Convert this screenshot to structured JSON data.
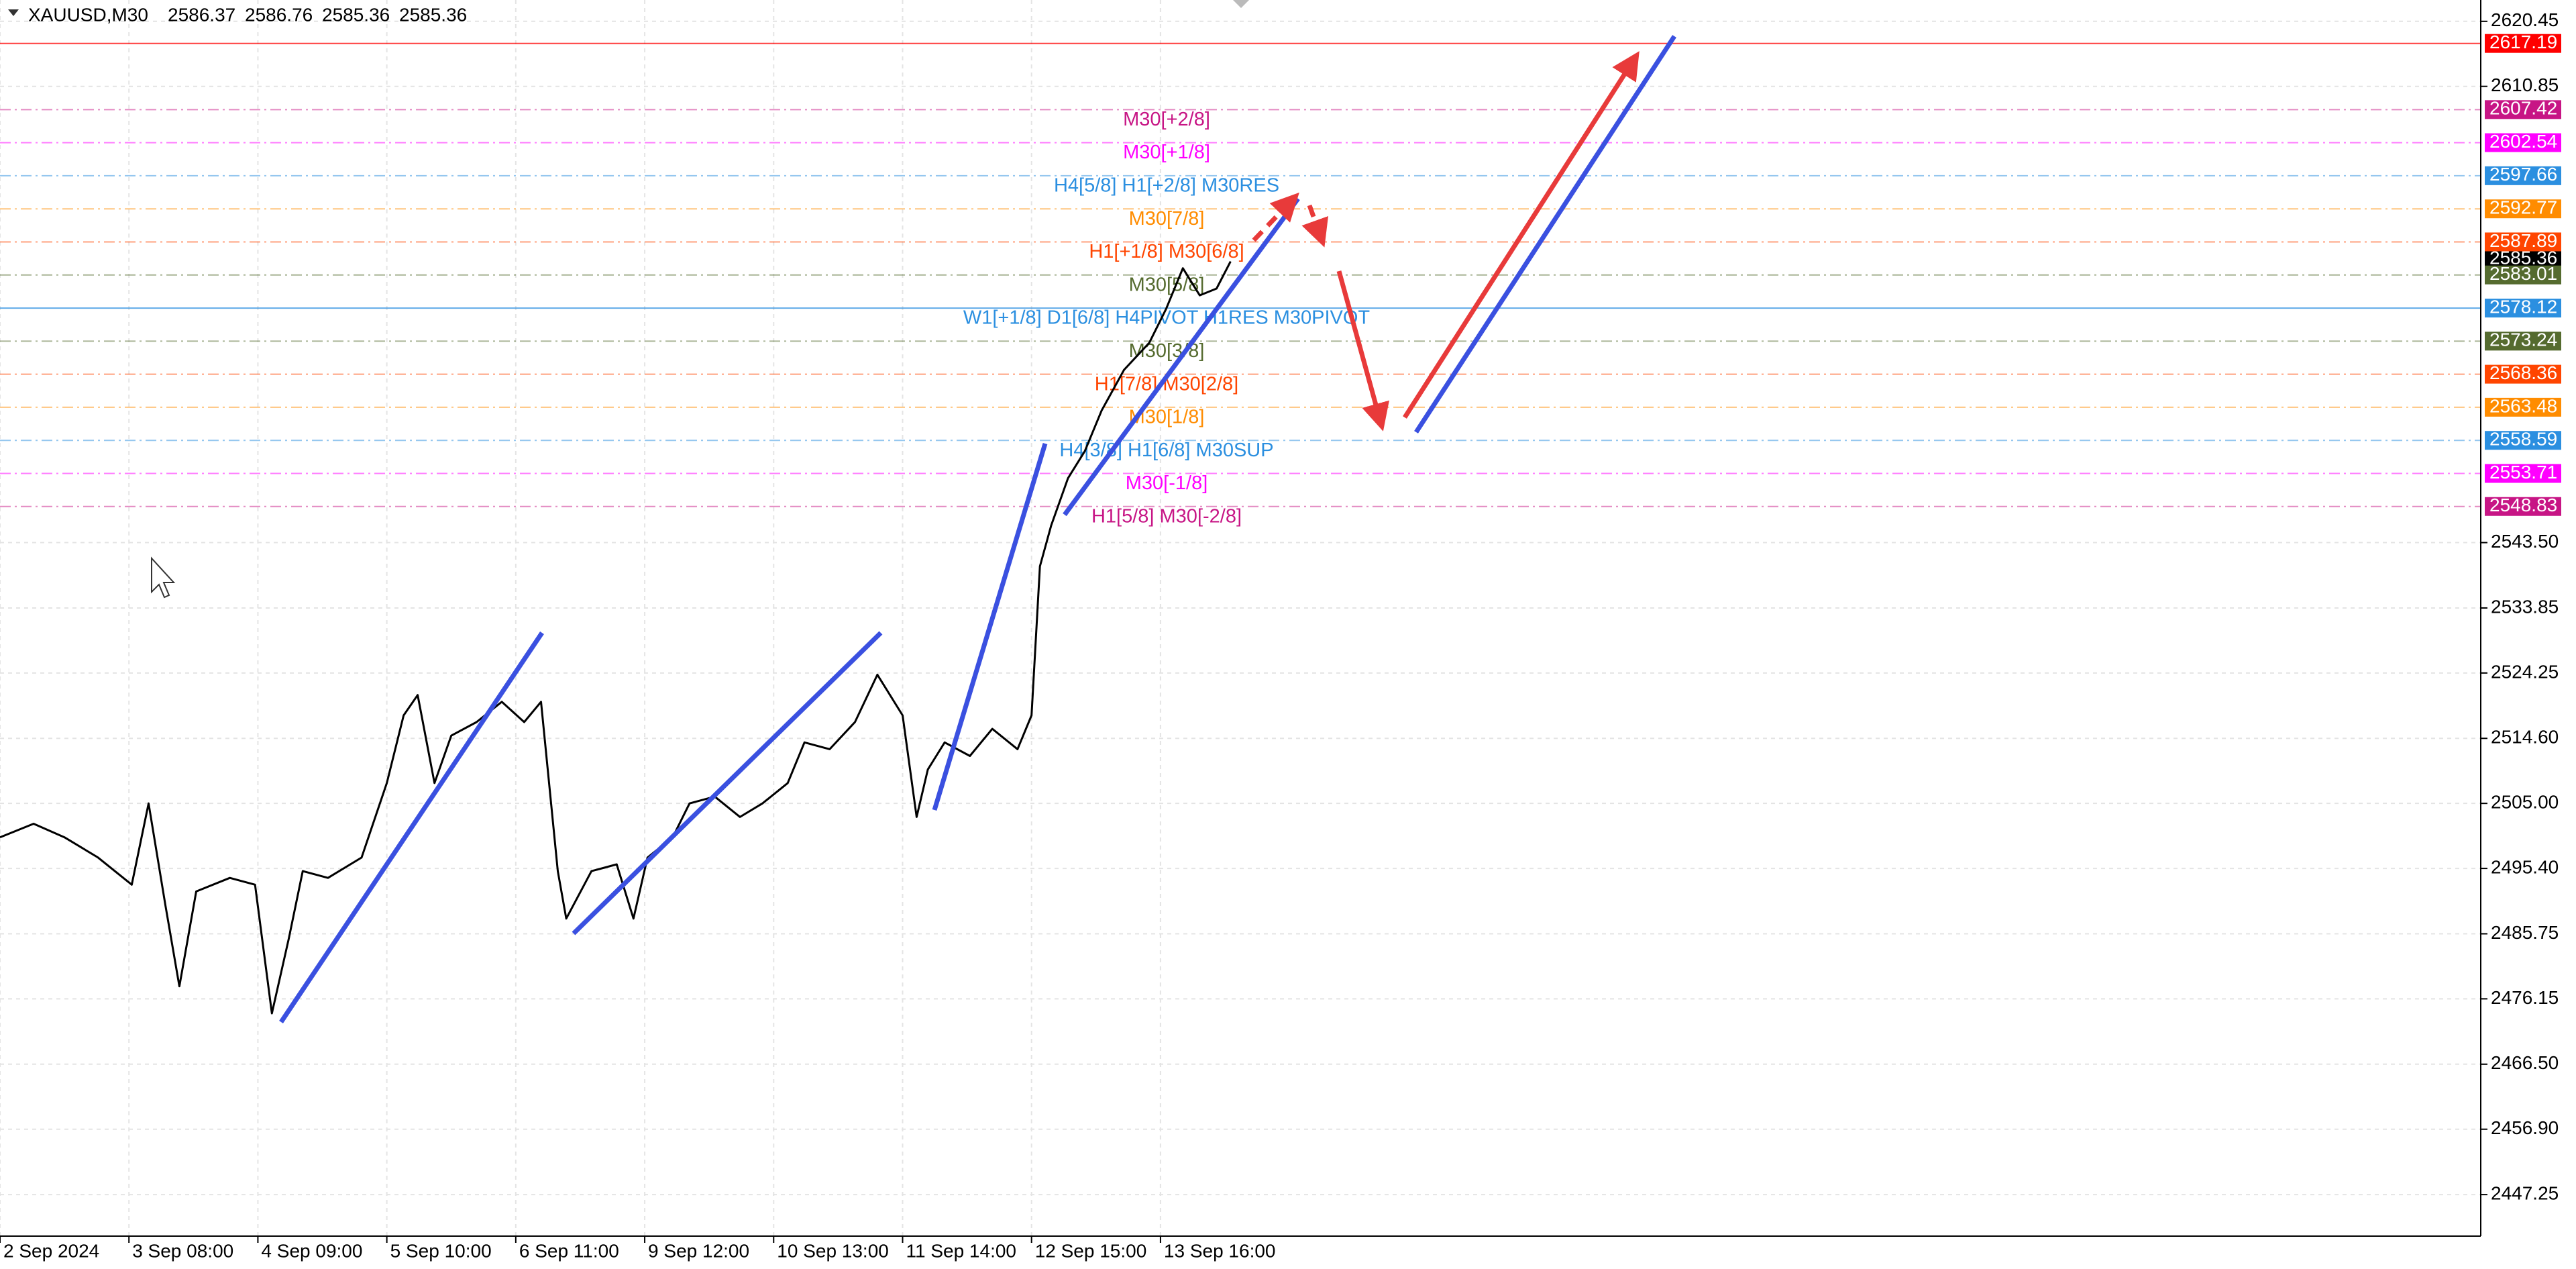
{
  "header": {
    "symbol": "XAUUSD,M30",
    "ohlc": [
      2586.37,
      2586.76,
      2585.36,
      2585.36
    ]
  },
  "chart_data": {
    "type": "line",
    "color": "#000000",
    "x": [
      0,
      12,
      23,
      35,
      47,
      53,
      59,
      64,
      70,
      82,
      91,
      97,
      103,
      108,
      117,
      129,
      138,
      144,
      149,
      155,
      161,
      170,
      179,
      187,
      193,
      199,
      202,
      211,
      220,
      226,
      231,
      240,
      246,
      255,
      264,
      272,
      281,
      287,
      296,
      305,
      313,
      322,
      327,
      331,
      337,
      346,
      354,
      363,
      368,
      371,
      375,
      381,
      387,
      393,
      401,
      410,
      416,
      422,
      428,
      434,
      439
    ],
    "values": [
      2500,
      2502,
      2500,
      2497,
      2493,
      2505,
      2490,
      2478,
      2492,
      2494,
      2493,
      2474,
      2485,
      2495,
      2494,
      2497,
      2508,
      2518,
      2521,
      2508,
      2515,
      2517,
      2520,
      2517,
      2520,
      2495,
      2488,
      2495,
      2496,
      2488,
      2497,
      2500,
      2505,
      2506,
      2503,
      2505,
      2508,
      2514,
      2513,
      2517,
      2524,
      2518,
      2503,
      2510,
      2514,
      2512,
      2516,
      2513,
      2518,
      2540,
      2546,
      2553,
      2557,
      2563,
      2569,
      2573,
      2578,
      2584,
      2580,
      2581,
      2585
    ],
    "xlim": [
      0,
      885
    ],
    "xticks": [
      {
        "value": 0,
        "label": "2 Sep 2024"
      },
      {
        "value": 46,
        "label": "3 Sep 08:00"
      },
      {
        "value": 92,
        "label": "4 Sep 09:00"
      },
      {
        "value": 138,
        "label": "5 Sep 10:00"
      },
      {
        "value": 184,
        "label": "6 Sep 11:00"
      },
      {
        "value": 230,
        "label": "9 Sep 12:00"
      },
      {
        "value": 276,
        "label": "10 Sep 13:00"
      },
      {
        "value": 322,
        "label": "11 Sep 14:00"
      },
      {
        "value": 368,
        "label": "12 Sep 15:00"
      },
      {
        "value": 414,
        "label": "13 Sep 16:00"
      }
    ],
    "ylim": [
      2441.12,
      2623.6
    ],
    "yticks": [
      2620.45,
      2610.85,
      {
        "value": 2543.5,
        "label": "2543.50"
      },
      2533.85,
      2524.25,
      {
        "value": 2514.6,
        "label": "2514.60"
      },
      {
        "value": 2505,
        "label": "2505.00"
      },
      {
        "value": 2495.4,
        "label": "2495.40"
      },
      2485.75,
      2476.15,
      {
        "value": 2466.5,
        "label": "2466.50"
      },
      {
        "value": 2456.9,
        "label": "2456.90"
      },
      2447.25
    ],
    "grid": true,
    "bid": 2585.36,
    "levels": [
      {
        "value": 2617.19,
        "color": "#ff0000",
        "style": "solid"
      },
      {
        "value": 2607.42,
        "label": "M30[+2/8]",
        "color": "#c71585",
        "style": "dashdot"
      },
      {
        "value": 2602.54,
        "label": "M30[+1/8]",
        "color": "#ff00ff",
        "style": "dashdot"
      },
      {
        "value": 2597.66,
        "label": "H4[5/8] H1[+2/8] M30RES",
        "color": "#2b8fe0",
        "style": "dashdot"
      },
      {
        "value": 2592.77,
        "label": "M30[7/8]",
        "color": "#ff8c00",
        "style": "dashdot"
      },
      {
        "value": 2587.89,
        "label": "H1[+1/8] M30[6/8]",
        "color": "#ff4500",
        "style": "dashdot"
      },
      {
        "value": 2583.01,
        "label": "M30[5/8]",
        "color": "#556b2f",
        "style": "dashdot"
      },
      {
        "value": 2578.12,
        "label": "W1[+1/8] D1[6/8] H4PIVOT H1RES M30PIVOT",
        "color": "#2b8fe0",
        "style": "solid"
      },
      {
        "value": 2573.24,
        "label": "M30[3/8]",
        "color": "#556b2f",
        "style": "dashdot"
      },
      {
        "value": 2568.36,
        "label": "H1[7/8] M30[2/8]",
        "color": "#ff4500",
        "style": "dashdot"
      },
      {
        "value": 2563.48,
        "label": "M30[1/8]",
        "color": "#ff8c00",
        "style": "dashdot"
      },
      {
        "value": 2558.59,
        "label": "H4[3/8] H1[6/8] M30SUP",
        "color": "#2b8fe0",
        "style": "dashdot"
      },
      {
        "value": 2553.71,
        "label": "M30[-1/8]",
        "color": "#ff00ff",
        "style": "dashdot"
      },
      {
        "value": 2548.83,
        "label": "H1[5/8] M30[-2/8]",
        "color": "#c71585",
        "style": "dashdot"
      }
    ]
  }
}
